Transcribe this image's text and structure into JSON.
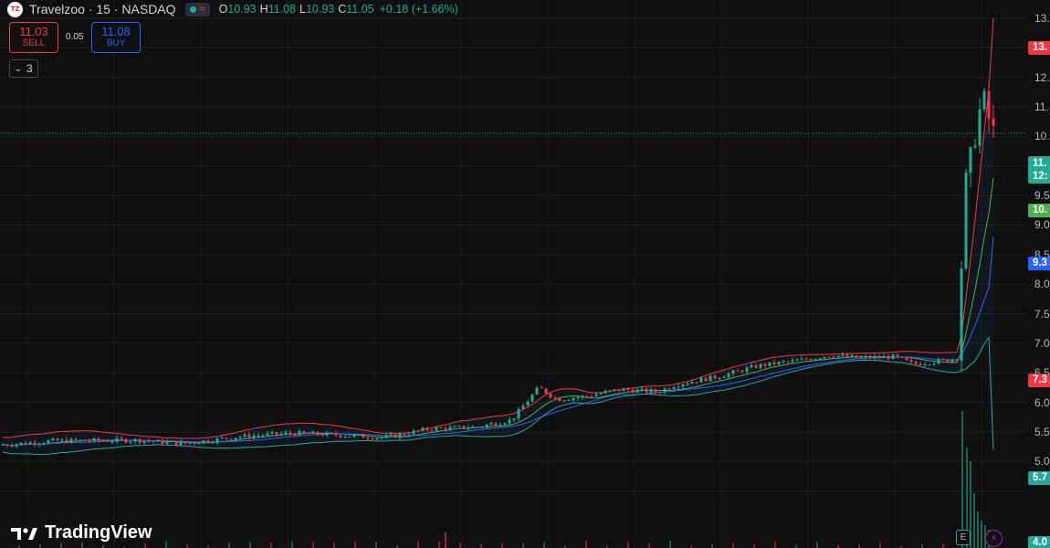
{
  "header": {
    "logo_text": "TZ",
    "symbol_title": "Travelzoo · 15 · NASDAQ",
    "wave_icon": "≈",
    "ohlc": {
      "o_key": "O",
      "o_val": "10.93",
      "h_key": "H",
      "h_val": "11.08",
      "l_key": "L",
      "l_val": "10.93",
      "c_key": "C",
      "c_val": "11.05"
    },
    "change": "+0.18 (+1.66%)"
  },
  "trade": {
    "sell_price": "11.03",
    "sell_label": "SELL",
    "spread": "0.05",
    "buy_price": "11.08",
    "buy_label": "BUY"
  },
  "indicators": {
    "collapsed_count": "3"
  },
  "watermark": {
    "text": "TradingView"
  },
  "price_axis": {
    "labels": [
      "13.",
      "12.",
      "12.",
      "11.",
      "10.",
      "10.",
      "9.5",
      "9.0",
      "8.5",
      "8.0",
      "7.5",
      "7.0",
      "6.5",
      "6.0",
      "5.5",
      "5.0"
    ],
    "tags": {
      "upper_band": "13.",
      "last_price": "11.",
      "countdown": "12:",
      "middle_band_green": "10.",
      "ma_blue": "9.3",
      "prev_level": "7.3",
      "lower_band": "5.7",
      "bottom": "4.0"
    }
  },
  "markers": {
    "earnings": "E",
    "flash": "⚡"
  },
  "colors": {
    "background": "#0f0f0f",
    "up": "#22ab94",
    "down": "#f23645",
    "buy_blue": "#2962ff",
    "upper_band": "#f23645",
    "basis_green": "#4caf50",
    "lower_band": "#26a69a",
    "ma_blue": "#2962ff"
  },
  "chart_data": {
    "type": "candlestick",
    "interval": "15",
    "y_range": [
      4.8,
      13.1
    ],
    "grid": true,
    "last_price": 11.05,
    "anchors": [
      [
        0,
        5.78
      ],
      [
        60,
        5.85
      ],
      [
        150,
        5.86
      ],
      [
        200,
        5.8
      ],
      [
        260,
        5.92
      ],
      [
        320,
        5.98
      ],
      [
        370,
        5.95
      ],
      [
        420,
        5.9
      ],
      [
        470,
        6.05
      ],
      [
        520,
        6.08
      ],
      [
        560,
        6.2
      ],
      [
        590,
        6.75
      ],
      [
        610,
        6.55
      ],
      [
        640,
        6.6
      ],
      [
        680,
        6.72
      ],
      [
        720,
        6.68
      ],
      [
        740,
        6.8
      ],
      [
        790,
        6.95
      ],
      [
        830,
        7.12
      ],
      [
        870,
        7.2
      ],
      [
        910,
        7.3
      ],
      [
        940,
        7.25
      ],
      [
        980,
        7.27
      ],
      [
        1000,
        7.15
      ],
      [
        1030,
        7.2
      ],
      [
        1050,
        7.25
      ],
      [
        1055,
        9.9
      ],
      [
        1060,
        10.4
      ],
      [
        1065,
        10.7
      ],
      [
        1070,
        11.3
      ],
      [
        1075,
        11.5
      ],
      [
        1080,
        11.6
      ],
      [
        1084,
        11.2
      ],
      [
        1088,
        11.05
      ]
    ],
    "overlays": {
      "upper_band_end": 13.0,
      "basis_end": 10.3,
      "ma_end": 9.3,
      "lower_band_end": 5.7
    }
  }
}
